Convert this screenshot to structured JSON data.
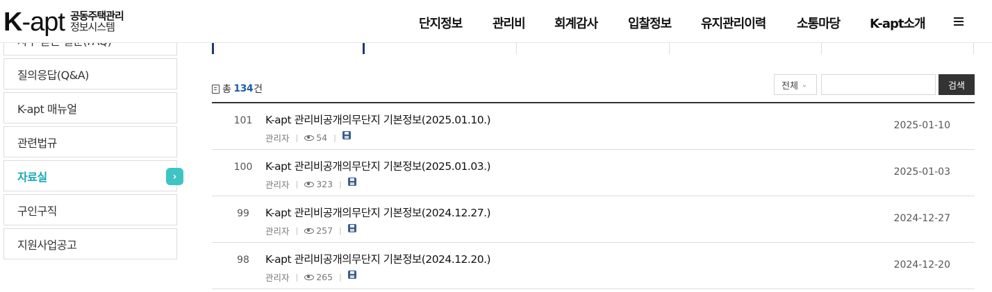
{
  "logo": {
    "main_k": "K",
    "main_apt": "-apt",
    "sub_line1": "공동주택관리",
    "sub_line2": "정보시스템"
  },
  "nav": [
    {
      "label": "단지정보"
    },
    {
      "label": "관리비"
    },
    {
      "label": "회계감사"
    },
    {
      "label": "입찰정보"
    },
    {
      "label": "유지관리이력"
    },
    {
      "label": "소통마당"
    },
    {
      "label": "K-apt소개"
    }
  ],
  "sidebar": {
    "items": [
      {
        "label": "자주 묻는 질문(FAQ)"
      },
      {
        "label": "질의응답(Q&A)"
      },
      {
        "label": "K-apt 매뉴얼"
      },
      {
        "label": "관련법규"
      },
      {
        "label": "자료실"
      },
      {
        "label": "구인구직"
      },
      {
        "label": "지원사업공고"
      }
    ],
    "active_index": 4,
    "arrow": "›"
  },
  "board": {
    "total_prefix": "총",
    "total_count": "134",
    "total_suffix": "건",
    "filter_value": "전체",
    "search_value": "",
    "search_button": "검색"
  },
  "posts": [
    {
      "no": "101",
      "title": "K-apt 관리비공개의무단지 기본정보(2025.01.10.)",
      "author": "관리자",
      "views": "54",
      "date": "2025-01-10"
    },
    {
      "no": "100",
      "title": "K-apt 관리비공개의무단지 기본정보(2025.01.03.)",
      "author": "관리자",
      "views": "323",
      "date": "2025-01-03"
    },
    {
      "no": "99",
      "title": "K-apt 관리비공개의무단지 기본정보(2024.12.27.)",
      "author": "관리자",
      "views": "257",
      "date": "2024-12-27"
    },
    {
      "no": "98",
      "title": "K-apt 관리비공개의무단지 기본정보(2024.12.20.)",
      "author": "관리자",
      "views": "265",
      "date": "2024-12-20"
    }
  ]
}
